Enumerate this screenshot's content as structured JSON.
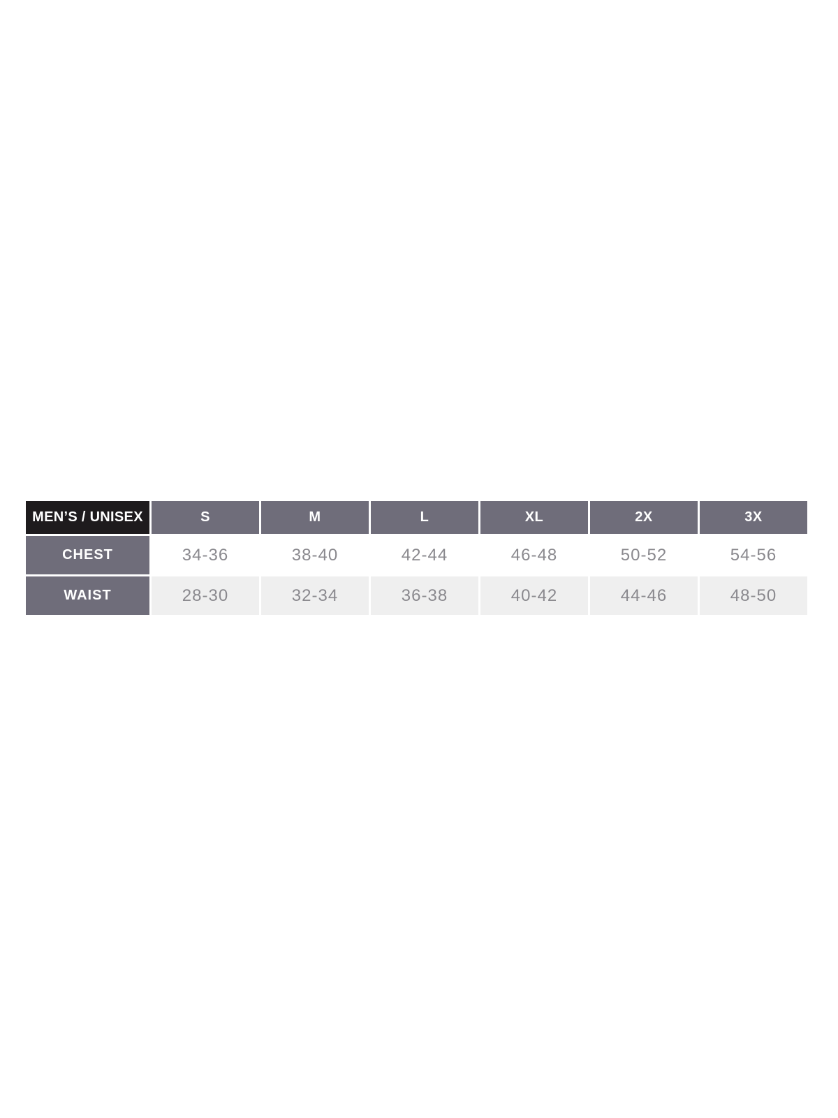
{
  "chart_data": {
    "type": "table",
    "title": "MEN’S / UNISEX",
    "columns": [
      "MEN’S / UNISEX",
      "S",
      "M",
      "L",
      "XL",
      "2X",
      "3X"
    ],
    "rows": [
      [
        "CHEST",
        "34-36",
        "38-40",
        "42-44",
        "46-48",
        "50-52",
        "54-56"
      ],
      [
        "WAIST",
        "28-30",
        "32-34",
        "36-38",
        "40-42",
        "44-46",
        "48-50"
      ]
    ]
  },
  "colors": {
    "corner_bg": "#1e1b1d",
    "header_bg": "#6f6d7a",
    "header_text": "#ffffff",
    "value_text": "#8a898e",
    "row_even_bg": "#ffffff",
    "row_odd_bg": "#efefef",
    "page_bg": "#ffffff",
    "grid_gap": "#ffffff"
  }
}
